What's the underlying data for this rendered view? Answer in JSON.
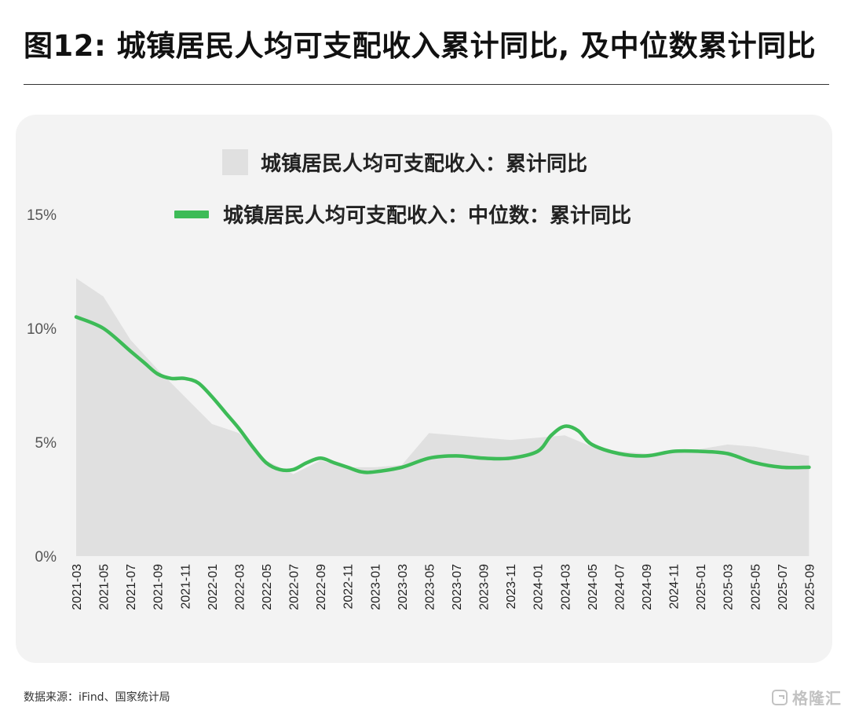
{
  "header": {
    "title": "图12: 城镇居民人均可支配收入累计同比, 及中位数累计同比"
  },
  "footer": {
    "source": "数据来源：iFind、国家统计局",
    "logo_text": "格隆汇",
    "logo_icon": "gelonghui-logo-icon"
  },
  "colors": {
    "area_fill": "#e0e0e0",
    "line": "#3dbb57",
    "card_bg": "#f3f3f3"
  },
  "chart_data": {
    "type": "line",
    "title": "",
    "xlabel": "",
    "ylabel": "",
    "ylim": [
      0,
      15
    ],
    "yticks": [
      0,
      5,
      10,
      15
    ],
    "ytick_labels": [
      "0%",
      "5%",
      "10%",
      "15%"
    ],
    "grid": false,
    "legend_position": "top-center",
    "categories": [
      "2021-03",
      "2021-05",
      "2021-07",
      "2021-09",
      "2021-11",
      "2022-01",
      "2022-03",
      "2022-05",
      "2022-07",
      "2022-09",
      "2022-11",
      "2023-01",
      "2023-03",
      "2023-05",
      "2023-07",
      "2023-09",
      "2023-11",
      "2024-01",
      "2024-03",
      "2024-05",
      "2024-07",
      "2024-09",
      "2024-11",
      "2025-01",
      "2025-03",
      "2025-05",
      "2025-07",
      "2025-09"
    ],
    "series": [
      {
        "name": "城镇居民人均可支配收入：累计同比",
        "style": "area",
        "x": [
          "2021-03",
          "2021-05",
          "2021-07",
          "2021-09",
          "2021-11",
          "2022-01",
          "2022-03",
          "2022-05",
          "2022-07",
          "2022-09",
          "2022-11",
          "2023-01",
          "2023-03",
          "2023-05",
          "2023-07",
          "2023-09",
          "2023-11",
          "2024-01",
          "2024-03",
          "2024-05",
          "2024-07",
          "2024-09",
          "2024-11",
          "2025-01",
          "2025-03",
          "2025-05",
          "2025-07",
          "2025-09"
        ],
        "values": [
          12.2,
          11.4,
          9.5,
          8.2,
          7.0,
          5.8,
          5.4,
          4.2,
          3.6,
          4.2,
          3.9,
          3.9,
          4.0,
          5.4,
          5.3,
          5.2,
          5.1,
          5.2,
          5.3,
          4.8,
          4.6,
          4.5,
          4.6,
          4.7,
          4.9,
          4.8,
          4.6,
          4.4
        ]
      },
      {
        "name": "城镇居民人均可支配收入：中位数：累计同比",
        "style": "line",
        "x": [
          "2021-03",
          "2021-05",
          "2021-07",
          "2021-08",
          "2021-09",
          "2021-10",
          "2021-11",
          "2021-12",
          "2022-01",
          "2022-02",
          "2022-03",
          "2022-04",
          "2022-05",
          "2022-06",
          "2022-07",
          "2022-08",
          "2022-09",
          "2022-10",
          "2022-11",
          "2022-12",
          "2023-01",
          "2023-03",
          "2023-05",
          "2023-07",
          "2023-09",
          "2023-11",
          "2024-01",
          "2024-02",
          "2024-03",
          "2024-04",
          "2024-05",
          "2024-07",
          "2024-09",
          "2024-11",
          "2025-01",
          "2025-03",
          "2025-05",
          "2025-07",
          "2025-09"
        ],
        "values": [
          10.5,
          10.0,
          9.0,
          8.5,
          8.0,
          7.8,
          7.8,
          7.6,
          7.0,
          6.3,
          5.6,
          4.8,
          4.1,
          3.8,
          3.8,
          4.1,
          4.3,
          4.1,
          3.9,
          3.7,
          3.7,
          3.9,
          4.3,
          4.4,
          4.3,
          4.3,
          4.6,
          5.3,
          5.7,
          5.5,
          4.9,
          4.5,
          4.4,
          4.6,
          4.6,
          4.5,
          4.1,
          3.9,
          3.9
        ]
      }
    ]
  }
}
